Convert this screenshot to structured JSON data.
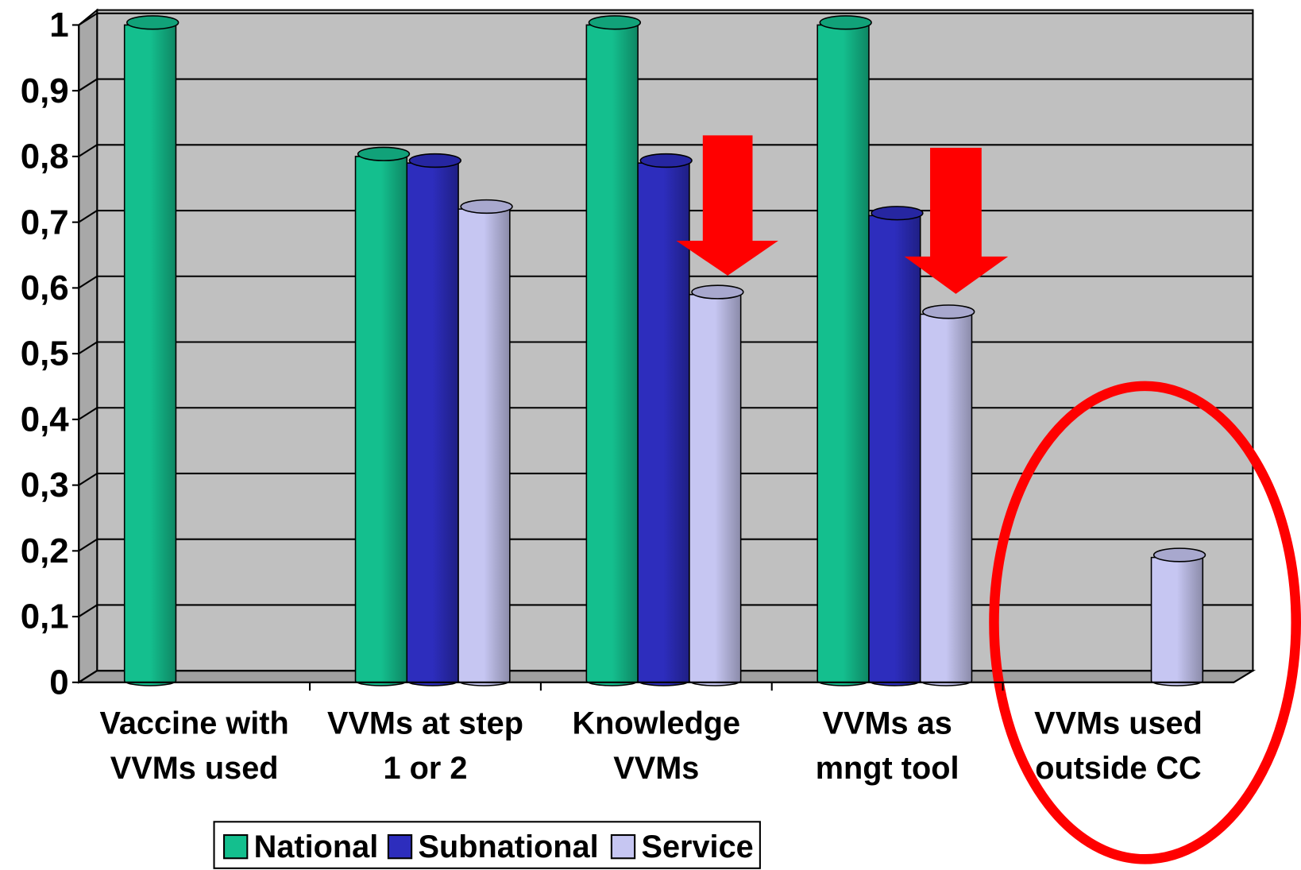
{
  "chart_data": {
    "type": "bar",
    "categories": [
      "Vaccine with VVMs used",
      "VVMs at step 1 or 2",
      "Knowledge VVMs",
      "VVMs as mngt tool",
      "VVMs used outside CC"
    ],
    "series": [
      {
        "name": "National",
        "color": "#14bf8e",
        "values": [
          1,
          0.8,
          1,
          1,
          null
        ]
      },
      {
        "name": "Subnational",
        "color": "#2d2dbd",
        "values": [
          null,
          0.79,
          0.79,
          0.71,
          null
        ]
      },
      {
        "name": "Service",
        "color": "#c6c6f2",
        "values": [
          null,
          0.72,
          0.59,
          0.56,
          0.19
        ]
      }
    ],
    "ylim": [
      0,
      1
    ],
    "yticks": [
      0,
      {
        "value": 0.1,
        "label": "0,1"
      },
      {
        "value": 0.2,
        "label": "0,2"
      },
      {
        "value": 0.3,
        "label": "0,3"
      },
      {
        "value": 0.4,
        "label": "0,4"
      },
      {
        "value": 0.5,
        "label": "0,5"
      },
      {
        "value": 0.6,
        "label": "0,6"
      },
      {
        "value": 0.7,
        "label": "0,7"
      },
      {
        "value": 0.8,
        "label": "0,8"
      },
      {
        "value": 0.9,
        "label": "0,9"
      },
      1
    ],
    "grid": true,
    "legend": "bottom"
  }
}
